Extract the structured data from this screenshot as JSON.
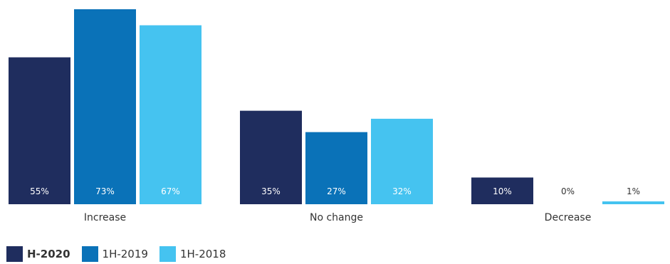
{
  "chart_data": {
    "type": "bar",
    "categories": [
      "Increase",
      "No change",
      "Decrease"
    ],
    "series": [
      {
        "name": "H-2020",
        "values": [
          55,
          35,
          10
        ],
        "labels": [
          "55%",
          "35%",
          "10%"
        ],
        "color": "#1f2d5e"
      },
      {
        "name": "1H-2019",
        "values": [
          73,
          27,
          0
        ],
        "labels": [
          "73%",
          "27%",
          "0%"
        ],
        "color": "#0a72b8"
      },
      {
        "name": "1H-2018",
        "values": [
          67,
          32,
          1
        ],
        "labels": [
          "67%",
          "32%",
          "1%"
        ],
        "color": "#45c3f0"
      }
    ],
    "ylim": [
      0,
      73
    ],
    "grid": false,
    "legend": "bottom-left"
  }
}
